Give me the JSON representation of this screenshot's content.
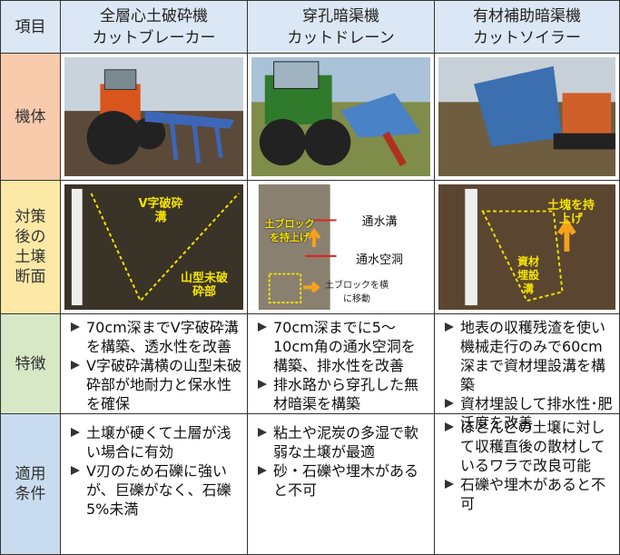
{
  "table": {
    "header": {
      "label": "項目",
      "columns": [
        {
          "name": "全層心土破砕機",
          "product": "カットブレーカー"
        },
        {
          "name": "穿孔暗渠機",
          "product": "カットドレーン"
        },
        {
          "name": "有材補助暗渠機",
          "product": "カットソイラー"
        }
      ]
    },
    "row_labels": [
      "機体",
      "対策後の土壌断面",
      "特徴",
      "適用条件"
    ],
    "soil_labels": [
      [
        "V字破砕溝",
        "山型未破砕部"
      ],
      [
        "土ブロックを持上げ",
        "通水溝",
        "通水空洞",
        "土ブロックを横に移動"
      ],
      [
        "土塊を持上げ",
        "資材埋設溝"
      ]
    ],
    "features": [
      [
        "70cm深までV字破砕溝を構築、透水性を改善",
        "V字破砕溝横の山型未破砕部が地耐力と保水性を確保"
      ],
      [
        "70cm深までに5～10cm角の通水空洞を構築、排水性を改善",
        "排水路から穿孔した無材暗渠を構築"
      ],
      [
        "地表の収穫残渣を使い機械走行のみで60cm深まで資材埋設溝を構築",
        "資材埋設して排水性･肥沃度を改善"
      ]
    ],
    "conditions": [
      [
        "土壌が硬くて土層が浅い場合に有効",
        "V刃のため石礫に強いが、巨礫がなく、石礫5%未満"
      ],
      [
        "粘土や泥炭の多湿で軟弱な土壌が最適",
        "砂・石礫や埋木があると不可"
      ],
      [
        "ほとんどの土壌に対して収穫直後の散材しているワラで改良可能",
        "石礫や埋木があると不可"
      ]
    ]
  }
}
